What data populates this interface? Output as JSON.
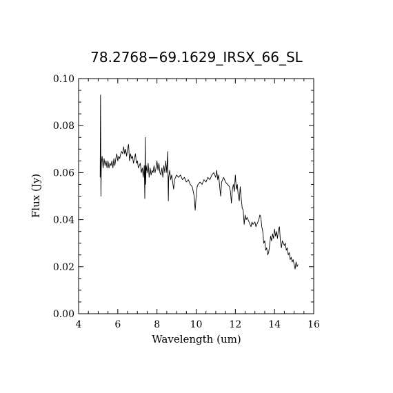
{
  "chart_data": {
    "type": "line",
    "title": "78.2768−69.1629_IRSX_66_SL",
    "xlabel": "Wavelength (um)",
    "ylabel": "Flux (Jy)",
    "xlim": [
      4,
      16
    ],
    "ylim": [
      0.0,
      0.1
    ],
    "xticks": [
      4,
      6,
      8,
      10,
      12,
      14,
      16
    ],
    "xtick_labels": [
      "4",
      "6",
      "8",
      "10",
      "12",
      "14",
      "16"
    ],
    "yticks": [
      0.0,
      0.02,
      0.04,
      0.06,
      0.08,
      0.1
    ],
    "ytick_labels": [
      "0.00",
      "0.02",
      "0.04",
      "0.06",
      "0.08",
      "0.10"
    ],
    "x_minor_step": 0.5,
    "y_minor_step": 0.005,
    "grid": false,
    "series": [
      {
        "color": "#000000",
        "points": [
          [
            5.1,
            0.058
          ],
          [
            5.12,
            0.093
          ],
          [
            5.14,
            0.05
          ],
          [
            5.16,
            0.064
          ],
          [
            5.2,
            0.067
          ],
          [
            5.25,
            0.062
          ],
          [
            5.3,
            0.066
          ],
          [
            5.35,
            0.063
          ],
          [
            5.4,
            0.065
          ],
          [
            5.45,
            0.062
          ],
          [
            5.5,
            0.065
          ],
          [
            5.55,
            0.062
          ],
          [
            5.6,
            0.064
          ],
          [
            5.65,
            0.063
          ],
          [
            5.7,
            0.065
          ],
          [
            5.75,
            0.062
          ],
          [
            5.8,
            0.066
          ],
          [
            5.85,
            0.063
          ],
          [
            5.9,
            0.066
          ],
          [
            5.95,
            0.068
          ],
          [
            6.0,
            0.065
          ],
          [
            6.05,
            0.067
          ],
          [
            6.1,
            0.066
          ],
          [
            6.15,
            0.068
          ],
          [
            6.2,
            0.069
          ],
          [
            6.25,
            0.068
          ],
          [
            6.3,
            0.071
          ],
          [
            6.35,
            0.068
          ],
          [
            6.4,
            0.07
          ],
          [
            6.45,
            0.067
          ],
          [
            6.5,
            0.07
          ],
          [
            6.55,
            0.072
          ],
          [
            6.6,
            0.065
          ],
          [
            6.65,
            0.068
          ],
          [
            6.7,
            0.066
          ],
          [
            6.75,
            0.067
          ],
          [
            6.8,
            0.064
          ],
          [
            6.85,
            0.066
          ],
          [
            6.9,
            0.068
          ],
          [
            6.95,
            0.064
          ],
          [
            7.0,
            0.065
          ],
          [
            7.05,
            0.062
          ],
          [
            7.1,
            0.063
          ],
          [
            7.15,
            0.064
          ],
          [
            7.2,
            0.06
          ],
          [
            7.25,
            0.062
          ],
          [
            7.3,
            0.058
          ],
          [
            7.35,
            0.063
          ],
          [
            7.38,
            0.049
          ],
          [
            7.4,
            0.075
          ],
          [
            7.42,
            0.055
          ],
          [
            7.45,
            0.063
          ],
          [
            7.5,
            0.06
          ],
          [
            7.55,
            0.064
          ],
          [
            7.6,
            0.058
          ],
          [
            7.65,
            0.062
          ],
          [
            7.7,
            0.059
          ],
          [
            7.75,
            0.061
          ],
          [
            7.8,
            0.06
          ],
          [
            7.85,
            0.063
          ],
          [
            7.9,
            0.06
          ],
          [
            7.95,
            0.062
          ],
          [
            8.0,
            0.065
          ],
          [
            8.05,
            0.061
          ],
          [
            8.1,
            0.064
          ],
          [
            8.15,
            0.06
          ],
          [
            8.2,
            0.059
          ],
          [
            8.25,
            0.062
          ],
          [
            8.3,
            0.058
          ],
          [
            8.35,
            0.063
          ],
          [
            8.4,
            0.06
          ],
          [
            8.45,
            0.065
          ],
          [
            8.5,
            0.06
          ],
          [
            8.55,
            0.069
          ],
          [
            8.58,
            0.048
          ],
          [
            8.6,
            0.058
          ],
          [
            8.65,
            0.061
          ],
          [
            8.7,
            0.057
          ],
          [
            8.75,
            0.059
          ],
          [
            8.8,
            0.056
          ],
          [
            8.85,
            0.053
          ],
          [
            8.9,
            0.057
          ],
          [
            8.95,
            0.058
          ],
          [
            9.0,
            0.059
          ],
          [
            9.1,
            0.058
          ],
          [
            9.2,
            0.059
          ],
          [
            9.3,
            0.057
          ],
          [
            9.4,
            0.058
          ],
          [
            9.5,
            0.056
          ],
          [
            9.6,
            0.057
          ],
          [
            9.7,
            0.055
          ],
          [
            9.8,
            0.054
          ],
          [
            9.9,
            0.05
          ],
          [
            9.95,
            0.044
          ],
          [
            10.0,
            0.05
          ],
          [
            10.05,
            0.054
          ],
          [
            10.1,
            0.055
          ],
          [
            10.2,
            0.056
          ],
          [
            10.3,
            0.055
          ],
          [
            10.4,
            0.057
          ],
          [
            10.5,
            0.056
          ],
          [
            10.6,
            0.058
          ],
          [
            10.7,
            0.057
          ],
          [
            10.8,
            0.059
          ],
          [
            10.9,
            0.06
          ],
          [
            11.0,
            0.058
          ],
          [
            11.05,
            0.061
          ],
          [
            11.1,
            0.057
          ],
          [
            11.15,
            0.059
          ],
          [
            11.2,
            0.054
          ],
          [
            11.25,
            0.05
          ],
          [
            11.3,
            0.056
          ],
          [
            11.35,
            0.057
          ],
          [
            11.4,
            0.058
          ],
          [
            11.5,
            0.056
          ],
          [
            11.6,
            0.055
          ],
          [
            11.7,
            0.054
          ],
          [
            11.75,
            0.052
          ],
          [
            11.8,
            0.047
          ],
          [
            11.85,
            0.053
          ],
          [
            11.9,
            0.055
          ],
          [
            11.95,
            0.052
          ],
          [
            12.0,
            0.059
          ],
          [
            12.05,
            0.053
          ],
          [
            12.1,
            0.055
          ],
          [
            12.15,
            0.05
          ],
          [
            12.2,
            0.048
          ],
          [
            12.25,
            0.054
          ],
          [
            12.3,
            0.049
          ],
          [
            12.35,
            0.045
          ],
          [
            12.4,
            0.044
          ],
          [
            12.45,
            0.038
          ],
          [
            12.5,
            0.042
          ],
          [
            12.55,
            0.04
          ],
          [
            12.6,
            0.041
          ],
          [
            12.7,
            0.039
          ],
          [
            12.8,
            0.037
          ],
          [
            12.85,
            0.039
          ],
          [
            12.9,
            0.038
          ],
          [
            13.0,
            0.039
          ],
          [
            13.05,
            0.037
          ],
          [
            13.1,
            0.038
          ],
          [
            13.2,
            0.04
          ],
          [
            13.25,
            0.042
          ],
          [
            13.3,
            0.041
          ],
          [
            13.35,
            0.037
          ],
          [
            13.4,
            0.035
          ],
          [
            13.45,
            0.03
          ],
          [
            13.5,
            0.031
          ],
          [
            13.55,
            0.027
          ],
          [
            13.6,
            0.028
          ],
          [
            13.65,
            0.025
          ],
          [
            13.7,
            0.026
          ],
          [
            13.75,
            0.029
          ],
          [
            13.8,
            0.033
          ],
          [
            13.85,
            0.031
          ],
          [
            13.9,
            0.034
          ],
          [
            13.95,
            0.032
          ],
          [
            14.0,
            0.036
          ],
          [
            14.05,
            0.033
          ],
          [
            14.1,
            0.035
          ],
          [
            14.15,
            0.032
          ],
          [
            14.2,
            0.036
          ],
          [
            14.25,
            0.037
          ],
          [
            14.3,
            0.031
          ],
          [
            14.35,
            0.028
          ],
          [
            14.4,
            0.031
          ],
          [
            14.45,
            0.03
          ],
          [
            14.5,
            0.029
          ],
          [
            14.55,
            0.03
          ],
          [
            14.6,
            0.027
          ],
          [
            14.65,
            0.028
          ],
          [
            14.7,
            0.025
          ],
          [
            14.75,
            0.026
          ],
          [
            14.8,
            0.023
          ],
          [
            14.85,
            0.024
          ],
          [
            14.9,
            0.022
          ],
          [
            14.95,
            0.023
          ],
          [
            15.0,
            0.021
          ],
          [
            15.05,
            0.019
          ],
          [
            15.1,
            0.022
          ],
          [
            15.15,
            0.02
          ],
          [
            15.2,
            0.021
          ]
        ]
      }
    ]
  }
}
